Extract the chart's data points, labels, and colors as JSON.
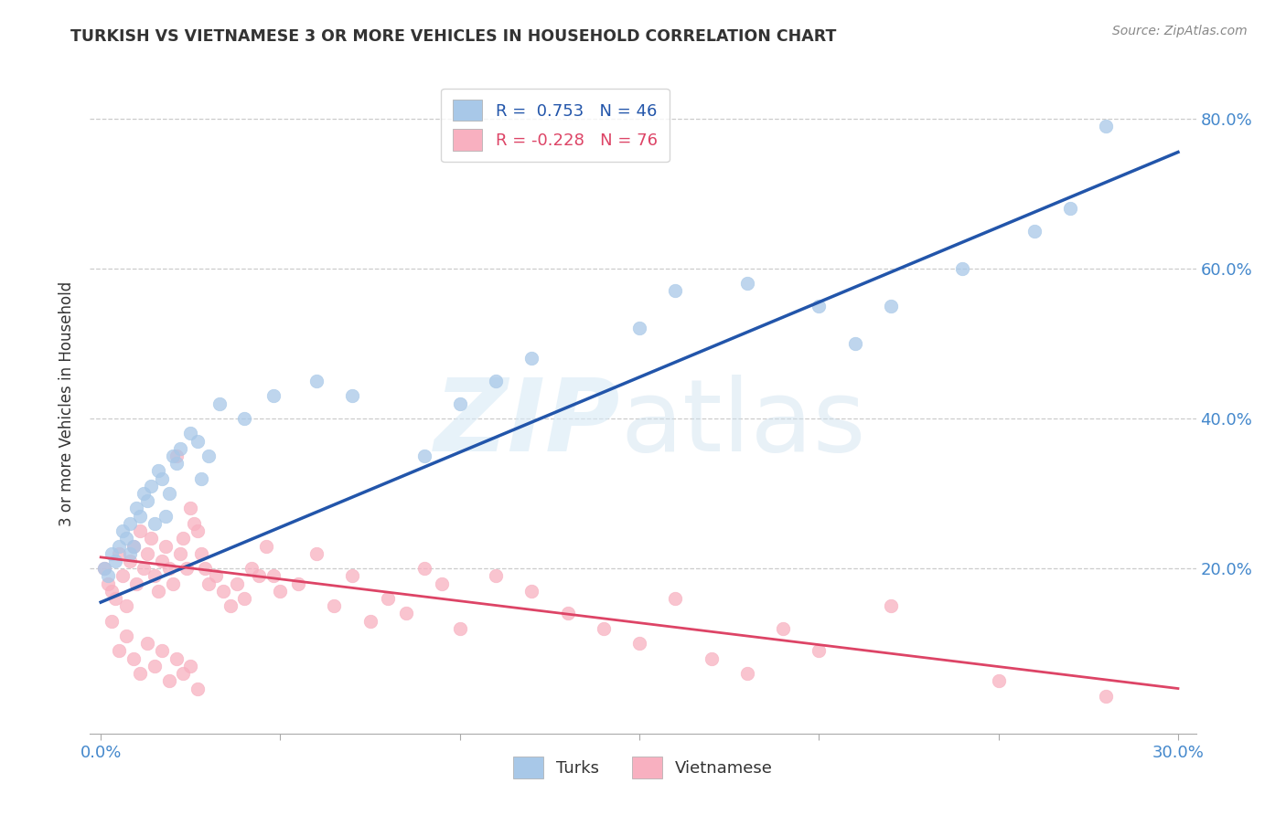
{
  "title": "TURKISH VS VIETNAMESE 3 OR MORE VEHICLES IN HOUSEHOLD CORRELATION CHART",
  "source": "Source: ZipAtlas.com",
  "ylabel": "3 or more Vehicles in Household",
  "ytick_labels": [
    "20.0%",
    "40.0%",
    "60.0%",
    "80.0%"
  ],
  "ytick_values": [
    0.2,
    0.4,
    0.6,
    0.8
  ],
  "xlim": [
    0.0,
    0.3
  ],
  "ylim": [
    -0.02,
    0.86
  ],
  "turks_R": "0.753",
  "turks_N": "46",
  "vietnamese_R": "-0.228",
  "vietnamese_N": "76",
  "turks_color": "#A8C8E8",
  "vietnamese_color": "#F8B0C0",
  "turks_line_color": "#2255AA",
  "vietnamese_line_color": "#DD4466",
  "legend_label_turks": "Turks",
  "legend_label_vietnamese": "Vietnamese",
  "title_color": "#333333",
  "axis_label_color": "#4488CC",
  "turks_x": [
    0.001,
    0.002,
    0.003,
    0.004,
    0.005,
    0.006,
    0.007,
    0.008,
    0.008,
    0.009,
    0.01,
    0.011,
    0.012,
    0.013,
    0.014,
    0.015,
    0.016,
    0.017,
    0.018,
    0.019,
    0.02,
    0.021,
    0.022,
    0.025,
    0.027,
    0.028,
    0.03,
    0.033,
    0.04,
    0.048,
    0.06,
    0.07,
    0.09,
    0.1,
    0.11,
    0.12,
    0.15,
    0.16,
    0.18,
    0.2,
    0.21,
    0.22,
    0.24,
    0.26,
    0.27,
    0.28
  ],
  "turks_y": [
    0.2,
    0.19,
    0.22,
    0.21,
    0.23,
    0.25,
    0.24,
    0.26,
    0.22,
    0.23,
    0.28,
    0.27,
    0.3,
    0.29,
    0.31,
    0.26,
    0.33,
    0.32,
    0.27,
    0.3,
    0.35,
    0.34,
    0.36,
    0.38,
    0.37,
    0.32,
    0.35,
    0.42,
    0.4,
    0.43,
    0.45,
    0.43,
    0.35,
    0.42,
    0.45,
    0.48,
    0.52,
    0.57,
    0.58,
    0.55,
    0.5,
    0.55,
    0.6,
    0.65,
    0.68,
    0.79
  ],
  "viet_x": [
    0.001,
    0.002,
    0.003,
    0.004,
    0.005,
    0.006,
    0.007,
    0.008,
    0.009,
    0.01,
    0.011,
    0.012,
    0.013,
    0.014,
    0.015,
    0.016,
    0.017,
    0.018,
    0.019,
    0.02,
    0.021,
    0.022,
    0.023,
    0.024,
    0.025,
    0.026,
    0.027,
    0.028,
    0.029,
    0.03,
    0.032,
    0.034,
    0.036,
    0.038,
    0.04,
    0.042,
    0.044,
    0.046,
    0.048,
    0.05,
    0.055,
    0.06,
    0.065,
    0.07,
    0.075,
    0.08,
    0.085,
    0.09,
    0.095,
    0.1,
    0.11,
    0.12,
    0.13,
    0.14,
    0.15,
    0.16,
    0.17,
    0.18,
    0.19,
    0.2,
    0.003,
    0.005,
    0.007,
    0.009,
    0.011,
    0.013,
    0.015,
    0.017,
    0.019,
    0.021,
    0.023,
    0.025,
    0.027,
    0.22,
    0.25,
    0.28
  ],
  "viet_y": [
    0.2,
    0.18,
    0.17,
    0.16,
    0.22,
    0.19,
    0.15,
    0.21,
    0.23,
    0.18,
    0.25,
    0.2,
    0.22,
    0.24,
    0.19,
    0.17,
    0.21,
    0.23,
    0.2,
    0.18,
    0.35,
    0.22,
    0.24,
    0.2,
    0.28,
    0.26,
    0.25,
    0.22,
    0.2,
    0.18,
    0.19,
    0.17,
    0.15,
    0.18,
    0.16,
    0.2,
    0.19,
    0.23,
    0.19,
    0.17,
    0.18,
    0.22,
    0.15,
    0.19,
    0.13,
    0.16,
    0.14,
    0.2,
    0.18,
    0.12,
    0.19,
    0.17,
    0.14,
    0.12,
    0.1,
    0.16,
    0.08,
    0.06,
    0.12,
    0.09,
    0.13,
    0.09,
    0.11,
    0.08,
    0.06,
    0.1,
    0.07,
    0.09,
    0.05,
    0.08,
    0.06,
    0.07,
    0.04,
    0.15,
    0.05,
    0.03
  ],
  "turks_line_x": [
    0.0,
    0.3
  ],
  "turks_line_y": [
    0.155,
    0.755
  ],
  "viet_line_x": [
    0.0,
    0.3
  ],
  "viet_line_y": [
    0.215,
    0.04
  ]
}
